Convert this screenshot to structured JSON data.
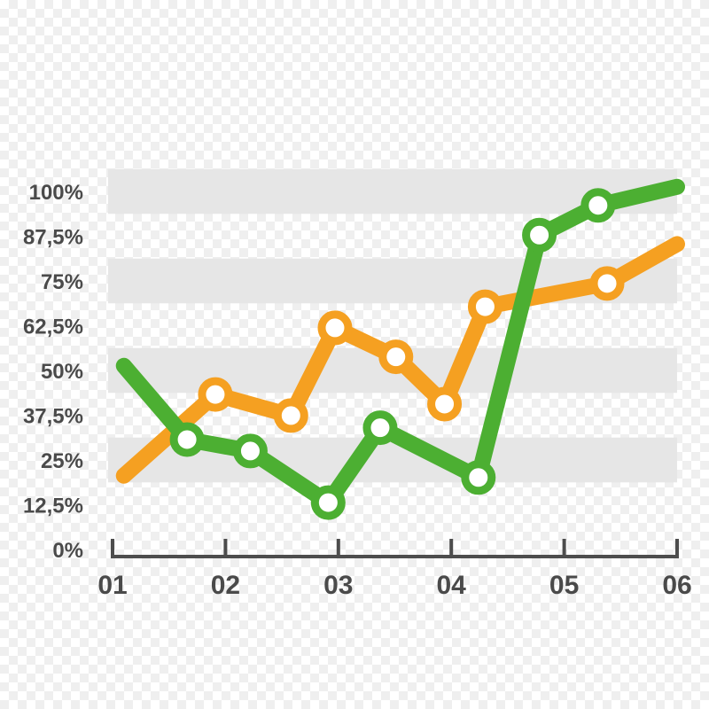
{
  "chart_data": {
    "type": "line",
    "title": "",
    "xlabel": "",
    "ylabel": "",
    "ylim": [
      0,
      100
    ],
    "xlim": [
      1,
      6
    ],
    "x_ticks": [
      "01",
      "02",
      "03",
      "04",
      "05",
      "06"
    ],
    "y_ticks": [
      "0%",
      "12,5%",
      "25%",
      "37,5%",
      "50%",
      "62,5%",
      "75%",
      "87,5%",
      "100%"
    ],
    "grid": "alternating horizontal bands",
    "legend": "none",
    "series": [
      {
        "color": "#f5a021",
        "markers": true,
        "x": [
          1.1,
          1.91,
          2.58,
          2.97,
          3.51,
          3.94,
          4.3,
          5.38,
          6.0
        ],
        "y": [
          20.6,
          43.3,
          37.4,
          61.9,
          53.8,
          40.6,
          67.8,
          74.3,
          85.3
        ],
        "marker_flags": [
          false,
          true,
          true,
          true,
          true,
          true,
          true,
          true,
          false
        ]
      },
      {
        "color": "#4caf32",
        "markers": true,
        "x": [
          1.1,
          1.66,
          2.22,
          2.91,
          3.37,
          4.24,
          4.78,
          5.3,
          6.0
        ],
        "y": [
          51.3,
          30.7,
          27.5,
          13.1,
          34.0,
          20.1,
          87.8,
          96.1,
          101.3
        ],
        "marker_flags": [
          false,
          true,
          true,
          true,
          true,
          true,
          true,
          true,
          false
        ]
      }
    ]
  }
}
